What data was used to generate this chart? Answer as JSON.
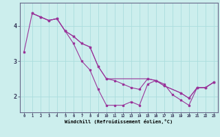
{
  "xlabel": "Windchill (Refroidissement éolien,°C)",
  "x_ticks": [
    0,
    1,
    2,
    3,
    4,
    5,
    6,
    7,
    8,
    9,
    10,
    11,
    12,
    13,
    14,
    15,
    16,
    17,
    18,
    19,
    20,
    21,
    22,
    23
  ],
  "y_ticks": [
    2,
    3,
    4
  ],
  "ylim": [
    1.55,
    4.65
  ],
  "xlim": [
    -0.5,
    23.5
  ],
  "bg_color": "#cceeed",
  "grid_color": "#aadddd",
  "line_color": "#993399",
  "series1_x": [
    0,
    1,
    2,
    3,
    4,
    5,
    6,
    7,
    8,
    9,
    10,
    11,
    12,
    13,
    14,
    15,
    16,
    17,
    18,
    19,
    20,
    21,
    22,
    23
  ],
  "series1_y": [
    3.25,
    4.35,
    4.25,
    4.15,
    4.2,
    3.85,
    3.5,
    3.0,
    2.75,
    2.2,
    1.75,
    1.75,
    1.75,
    1.85,
    1.75,
    2.35,
    2.45,
    2.35,
    2.05,
    1.9,
    1.75,
    2.25,
    2.25,
    2.4
  ],
  "series2_x": [
    1,
    2,
    3,
    4,
    5,
    6,
    7,
    8,
    9,
    10,
    11,
    12,
    13,
    14,
    15,
    16,
    17,
    19,
    20,
    21,
    22,
    23
  ],
  "series2_y": [
    4.35,
    4.25,
    4.15,
    4.2,
    3.85,
    3.7,
    3.5,
    3.4,
    2.85,
    2.5,
    2.45,
    2.35,
    2.25,
    2.2,
    2.5,
    2.45,
    2.3,
    2.1,
    1.95,
    2.25,
    2.25,
    2.4
  ],
  "series3_x": [
    1,
    2,
    3,
    4,
    5,
    6,
    7,
    8,
    9,
    10,
    15,
    16,
    17,
    19,
    20,
    21,
    22,
    23
  ],
  "series3_y": [
    4.35,
    4.25,
    4.15,
    4.2,
    3.85,
    3.7,
    3.5,
    3.4,
    2.85,
    2.5,
    2.5,
    2.45,
    2.3,
    2.1,
    1.95,
    2.25,
    2.25,
    2.4
  ]
}
